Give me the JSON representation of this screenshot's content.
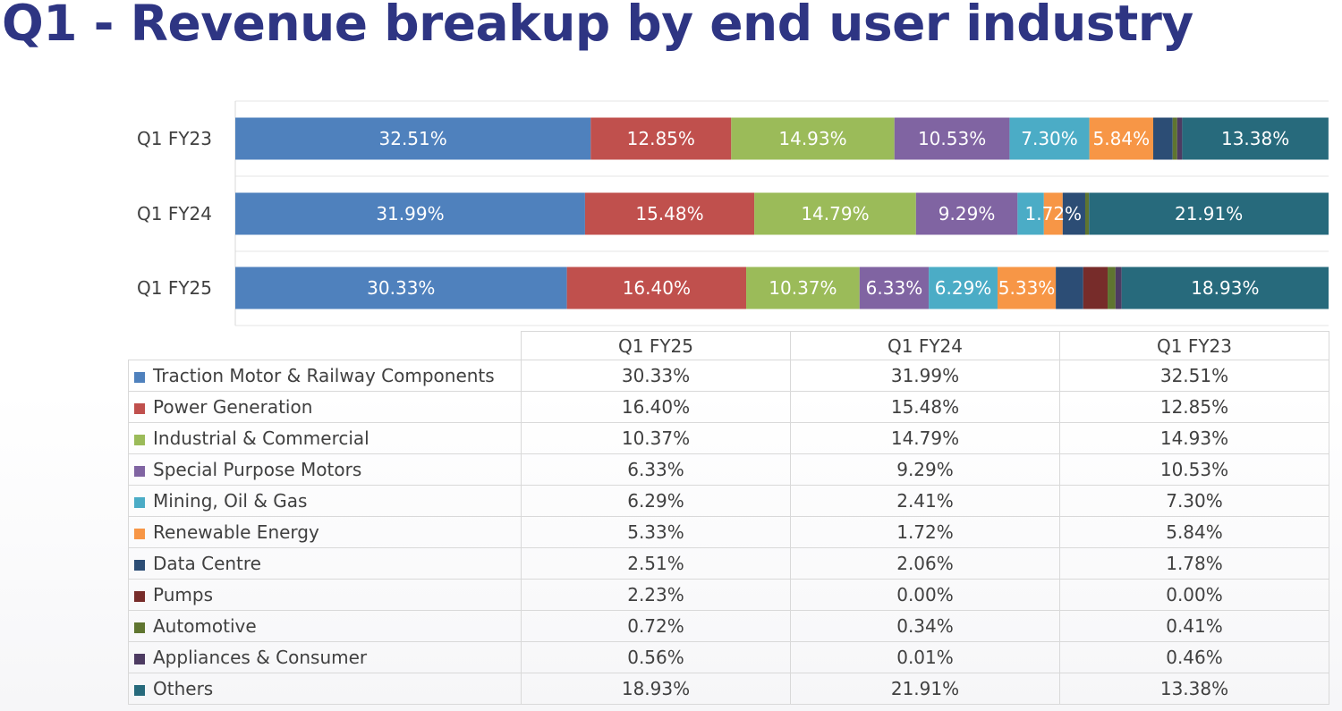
{
  "page": {
    "title": "Q1 - Revenue breakup by end user industry"
  },
  "chart_data": {
    "type": "bar",
    "orientation": "horizontal",
    "stacked": true,
    "normalized": true,
    "title": "Q1 - Revenue breakup by end user industry",
    "categories": [
      "Q1 FY23",
      "Q1 FY24",
      "Q1 FY25"
    ],
    "xlim": [
      0,
      100
    ],
    "legend_position": "table-below",
    "series": [
      {
        "name": "Traction Motor & Railway Components",
        "color": "#4f81bd",
        "values": [
          32.51,
          31.99,
          30.33
        ],
        "labels": [
          "32.51%",
          "31.99%",
          "30.33%"
        ]
      },
      {
        "name": "Power Generation",
        "color": "#c0504d",
        "values": [
          12.85,
          15.48,
          16.4
        ],
        "labels": [
          "12.85%",
          "15.48%",
          "16.40%"
        ]
      },
      {
        "name": "Industrial & Commercial",
        "color": "#9bbb59",
        "values": [
          14.93,
          14.79,
          10.37
        ],
        "labels": [
          "14.93%",
          "14.79%",
          "10.37%"
        ]
      },
      {
        "name": "Special Purpose Motors",
        "color": "#8064a2",
        "values": [
          10.53,
          9.29,
          6.33
        ],
        "labels": [
          "10.53%",
          "9.29%",
          "6.33%"
        ]
      },
      {
        "name": "Mining, Oil & Gas",
        "color": "#4bacc6",
        "values": [
          7.3,
          2.41,
          6.29
        ],
        "labels": [
          "7.30%",
          "",
          "6.29%"
        ]
      },
      {
        "name": "Renewable Energy",
        "color": "#f79646",
        "values": [
          5.84,
          1.72,
          5.33
        ],
        "labels": [
          "5.84%",
          "1.72%",
          "5.33%"
        ]
      },
      {
        "name": "Data Centre",
        "color": "#2c4d75",
        "values": [
          1.78,
          2.06,
          2.51
        ],
        "labels": [
          "",
          "",
          ""
        ]
      },
      {
        "name": "Pumps",
        "color": "#772c2a",
        "values": [
          0.0,
          0.0,
          2.23
        ],
        "labels": [
          "",
          "",
          ""
        ]
      },
      {
        "name": "Automotive",
        "color": "#5f7530",
        "values": [
          0.41,
          0.34,
          0.72
        ],
        "labels": [
          "",
          "",
          ""
        ]
      },
      {
        "name": "Appliances & Consumer",
        "color": "#4d3b62",
        "values": [
          0.46,
          0.01,
          0.56
        ],
        "labels": [
          "",
          "",
          ""
        ]
      },
      {
        "name": "Others",
        "color": "#276a7c",
        "values": [
          13.38,
          21.91,
          18.93
        ],
        "labels": [
          "13.38%",
          "21.91%",
          "18.93%"
        ]
      }
    ]
  },
  "table": {
    "headers": [
      "Q1 FY25",
      "Q1 FY24",
      "Q1 FY23"
    ],
    "rows": [
      {
        "label": "Traction Motor & Railway Components",
        "color": "#4f81bd",
        "values": [
          "30.33%",
          "31.99%",
          "32.51%"
        ]
      },
      {
        "label": "Power Generation",
        "color": "#c0504d",
        "values": [
          "16.40%",
          "15.48%",
          "12.85%"
        ]
      },
      {
        "label": "Industrial & Commercial",
        "color": "#9bbb59",
        "values": [
          "10.37%",
          "14.79%",
          "14.93%"
        ]
      },
      {
        "label": "Special Purpose Motors",
        "color": "#8064a2",
        "values": [
          "6.33%",
          "9.29%",
          "10.53%"
        ]
      },
      {
        "label": "Mining, Oil & Gas",
        "color": "#4bacc6",
        "values": [
          "6.29%",
          "2.41%",
          "7.30%"
        ]
      },
      {
        "label": "Renewable Energy",
        "color": "#f79646",
        "values": [
          "5.33%",
          "1.72%",
          "5.84%"
        ]
      },
      {
        "label": "Data Centre",
        "color": "#2c4d75",
        "values": [
          "2.51%",
          "2.06%",
          "1.78%"
        ]
      },
      {
        "label": "Pumps",
        "color": "#772c2a",
        "values": [
          "2.23%",
          "0.00%",
          "0.00%"
        ]
      },
      {
        "label": "Automotive",
        "color": "#5f7530",
        "values": [
          "0.72%",
          "0.34%",
          "0.41%"
        ]
      },
      {
        "label": "Appliances & Consumer",
        "color": "#4d3b62",
        "values": [
          "0.56%",
          "0.01%",
          "0.46%"
        ]
      },
      {
        "label": "Others",
        "color": "#276a7c",
        "values": [
          "18.93%",
          "21.91%",
          "13.38%"
        ]
      }
    ]
  }
}
